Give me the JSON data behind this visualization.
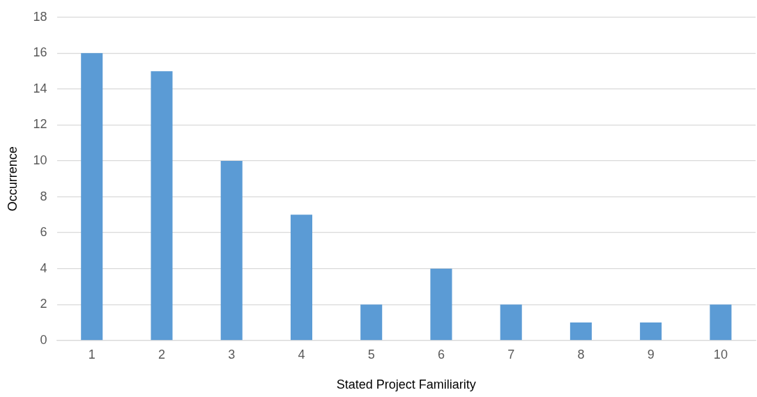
{
  "chart_data": {
    "type": "bar",
    "xlabel": "Stated Project Familiarity",
    "ylabel": "Occurrence",
    "categories": [
      "1",
      "2",
      "3",
      "4",
      "5",
      "6",
      "7",
      "8",
      "9",
      "10"
    ],
    "values": [
      16,
      15,
      10,
      7,
      2,
      4,
      2,
      1,
      1,
      2
    ],
    "color": "#5b9bd5",
    "ylim": [
      0,
      18
    ],
    "yticks": [
      0,
      2,
      4,
      6,
      8,
      10,
      12,
      14,
      16,
      18
    ],
    "grid": "y",
    "legend": false
  }
}
